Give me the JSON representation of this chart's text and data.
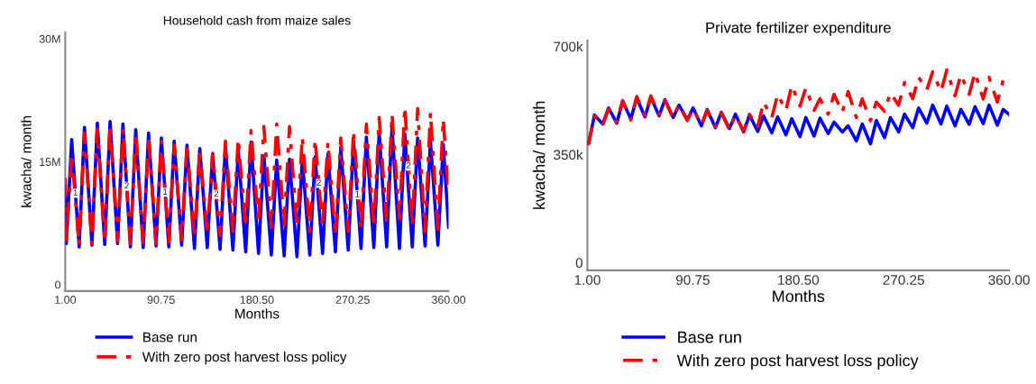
{
  "chart_data": [
    {
      "type": "line",
      "title": "Household cash from maize sales",
      "xlabel": "Months",
      "ylabel": "kwacha/ month",
      "xlim": [
        1,
        360
      ],
      "xticks": [
        {
          "value": 1,
          "label": "1.00"
        },
        {
          "value": 90.75,
          "label": "90.75"
        },
        {
          "value": 180.5,
          "label": "180.50"
        },
        {
          "value": 270.25,
          "label": "270.25"
        },
        {
          "value": 360,
          "label": "360.00"
        }
      ],
      "ylim": [
        -800000,
        30800000
      ],
      "yticks": [
        0,
        {
          "value": 15000000,
          "label": "15M"
        },
        {
          "value": 30000000,
          "label": "30M"
        }
      ],
      "grid": false,
      "legend": "bottom",
      "marker": "none",
      "x": [
        1,
        2,
        7,
        14,
        19,
        26,
        31,
        38,
        43,
        50,
        55,
        62,
        67,
        74,
        79,
        86,
        91,
        98,
        103,
        110,
        115,
        122,
        127,
        134,
        139,
        146,
        151,
        158,
        163,
        170,
        175,
        182,
        187,
        194,
        199,
        206,
        211,
        218,
        223,
        230,
        235,
        242,
        247,
        254,
        259,
        266,
        271,
        278,
        283,
        290,
        295,
        302,
        307,
        314,
        319,
        326,
        331,
        338,
        343,
        350,
        355,
        360
      ],
      "series": [
        {
          "name": "Base run",
          "color": "#0000ff",
          "line_style": "solid",
          "values": [
            12000000,
            5000000,
            17700000,
            4600000,
            19200000,
            4800000,
            19700000,
            4900000,
            19900000,
            5000000,
            19600000,
            4600000,
            18900000,
            4500000,
            18500000,
            4700000,
            17900000,
            4600000,
            17500000,
            4800000,
            17000000,
            4400000,
            16600000,
            4500000,
            16000000,
            4300000,
            16900000,
            4200000,
            16400000,
            4000000,
            17400000,
            3800000,
            15700000,
            3600000,
            15200000,
            3500000,
            15300000,
            3400000,
            15300000,
            3600000,
            15600000,
            3800000,
            16000000,
            4000000,
            16800000,
            4200000,
            17500000,
            4400000,
            18000000,
            4500000,
            18600000,
            4600000,
            19300000,
            4400000,
            18400000,
            4600000,
            17900000,
            4700000,
            17500000,
            4800000,
            17100000,
            7000000
          ]
        },
        {
          "name": "With zero post harvest loss policy",
          "color": "#ff0000",
          "line_style": "dashed",
          "values": [
            13000000,
            5000000,
            16000000,
            4800000,
            18500000,
            5000000,
            19000000,
            5200000,
            19500000,
            5300000,
            19000000,
            5000000,
            18500000,
            4800000,
            18000000,
            5000000,
            17500000,
            5200000,
            17000000,
            5500000,
            17000000,
            5800000,
            16500000,
            6200000,
            16000000,
            6000000,
            17500000,
            6500000,
            17800000,
            7000000,
            18800000,
            7500000,
            19300000,
            7000000,
            19600000,
            7300000,
            19300000,
            7000000,
            18000000,
            6500000,
            17700000,
            7000000,
            17400000,
            6000000,
            17900000,
            6500000,
            18800000,
            6800000,
            19600000,
            7000000,
            20400000,
            7500000,
            20800000,
            8000000,
            21700000,
            7200000,
            21500000,
            6500000,
            21000000,
            6800000,
            20200000,
            11000000
          ]
        }
      ],
      "annotations": [
        {
          "text": "1",
          "x": 10.5,
          "y": 11150000
        },
        {
          "text": "1",
          "x": 94.5,
          "y": 11250000
        },
        {
          "text": "1",
          "x": 274.5,
          "y": 10950000
        },
        {
          "text": "2",
          "x": 58.5,
          "y": 12000000
        },
        {
          "text": "2",
          "x": 142.5,
          "y": 11000000
        },
        {
          "text": "2",
          "x": 238.5,
          "y": 12350000
        },
        {
          "text": "2",
          "x": 322.5,
          "y": 14450000
        }
      ]
    },
    {
      "type": "line",
      "title": "Private fertilizer expenditure",
      "xlabel": "Months",
      "ylabel": "kwacha/ month",
      "xlim": [
        1,
        360
      ],
      "xticks": [
        {
          "value": 1,
          "label": "1.00"
        },
        {
          "value": 90.75,
          "label": "90.75"
        },
        {
          "value": 180.5,
          "label": "180.50"
        },
        {
          "value": 270.25,
          "label": "270.25"
        },
        {
          "value": 360,
          "label": "360.00"
        }
      ],
      "ylim": [
        -25000,
        720000
      ],
      "yticks": [
        0,
        {
          "value": 350000,
          "label": "350k"
        },
        {
          "value": 700000,
          "label": "700k"
        }
      ],
      "grid": false,
      "legend": "bottom",
      "marker": "none",
      "x": [
        1,
        2,
        7,
        14,
        19,
        26,
        31,
        38,
        43,
        50,
        55,
        62,
        67,
        74,
        79,
        86,
        91,
        98,
        103,
        110,
        115,
        122,
        127,
        134,
        139,
        146,
        151,
        158,
        163,
        170,
        175,
        182,
        187,
        194,
        199,
        206,
        211,
        218,
        223,
        230,
        235,
        242,
        247,
        254,
        259,
        266,
        271,
        278,
        283,
        290,
        295,
        302,
        307,
        314,
        319,
        326,
        331,
        338,
        343,
        350,
        355,
        360
      ],
      "series": [
        {
          "name": "Base run",
          "color": "#0000ff",
          "line_style": "solid",
          "values": [
            390000,
            385000,
            478000,
            449000,
            501000,
            452000,
            522000,
            466000,
            533000,
            472000,
            536000,
            475000,
            528000,
            470000,
            510000,
            463000,
            501000,
            443000,
            496000,
            437000,
            487000,
            434000,
            481000,
            423000,
            478000,
            425000,
            475000,
            420000,
            472000,
            414000,
            466000,
            408000,
            470000,
            410000,
            468000,
            418000,
            455000,
            423000,
            443000,
            394000,
            449000,
            385000,
            460000,
            405000,
            470000,
            423000,
            481000,
            437000,
            501000,
            452000,
            510000,
            449000,
            507000,
            443000,
            496000,
            448000,
            505000,
            450000,
            510000,
            445000,
            496000,
            480000
          ]
        },
        {
          "name": "With zero post harvest loss policy",
          "color": "#ff0000",
          "line_style": "dashed",
          "values": [
            392000,
            385000,
            475000,
            445000,
            498000,
            455000,
            525000,
            462000,
            538000,
            475000,
            540000,
            478000,
            525000,
            468000,
            512000,
            460000,
            498000,
            447000,
            493000,
            440000,
            485000,
            430000,
            478000,
            425000,
            480000,
            440000,
            520000,
            470000,
            545000,
            493000,
            574000,
            507000,
            566000,
            493000,
            531000,
            481000,
            545000,
            487000,
            554000,
            470000,
            530000,
            460000,
            520000,
            490000,
            550000,
            510000,
            583000,
            531000,
            600000,
            560000,
            618000,
            554000,
            624000,
            540000,
            609000,
            545000,
            615000,
            530000,
            600000,
            520000,
            590000,
            600000
          ]
        }
      ]
    }
  ]
}
